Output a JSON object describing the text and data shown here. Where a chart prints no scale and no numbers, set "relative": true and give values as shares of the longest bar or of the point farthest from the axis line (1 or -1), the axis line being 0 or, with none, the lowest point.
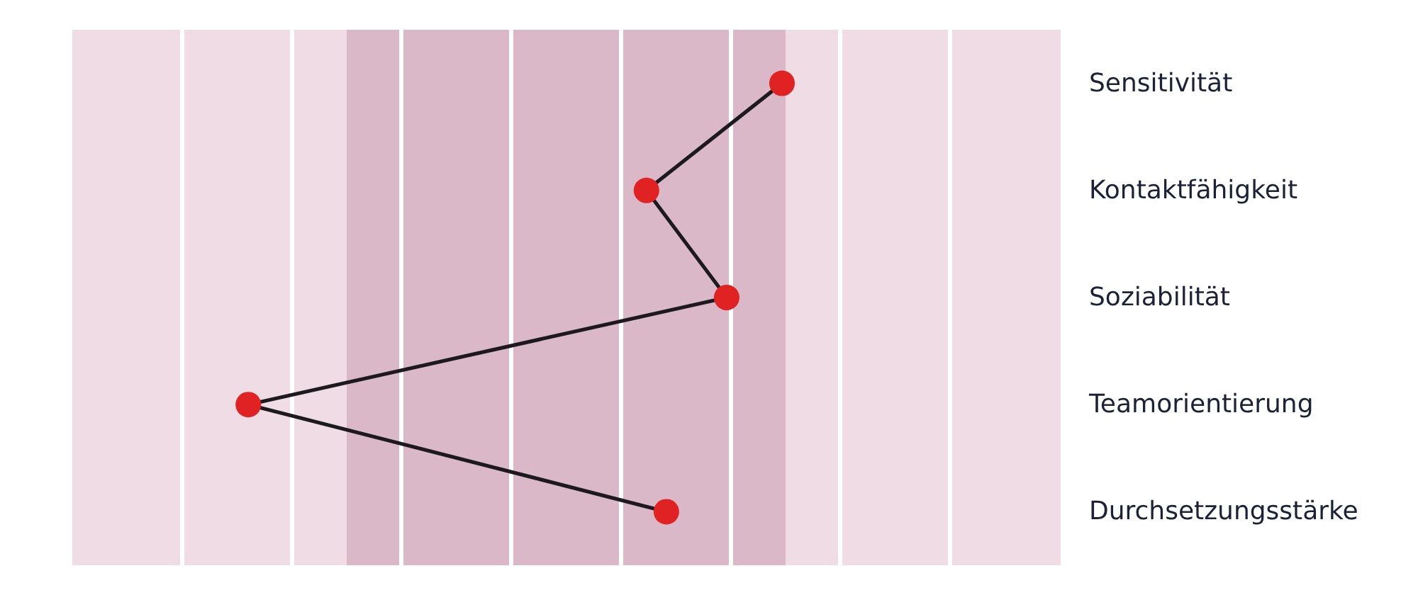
{
  "chart_data": {
    "type": "line",
    "orientation": "horizontal",
    "relative": true,
    "categories": [
      "Sensitivität",
      "Kontaktfähigkeit",
      "Soziabilität",
      "Teamorientierung",
      "Durchsetzungsstärke"
    ],
    "series": [
      {
        "color": "#1c1a1e",
        "colors": [
          "#e02222",
          "#e02222",
          "#e02222",
          "#e02222",
          "#e02222"
        ],
        "values": [
          1,
          0.809,
          0.922,
          0.248,
          0.837
        ]
      }
    ],
    "marker": "circle",
    "line_style": "solid",
    "tick_labels": "y"
  }
}
